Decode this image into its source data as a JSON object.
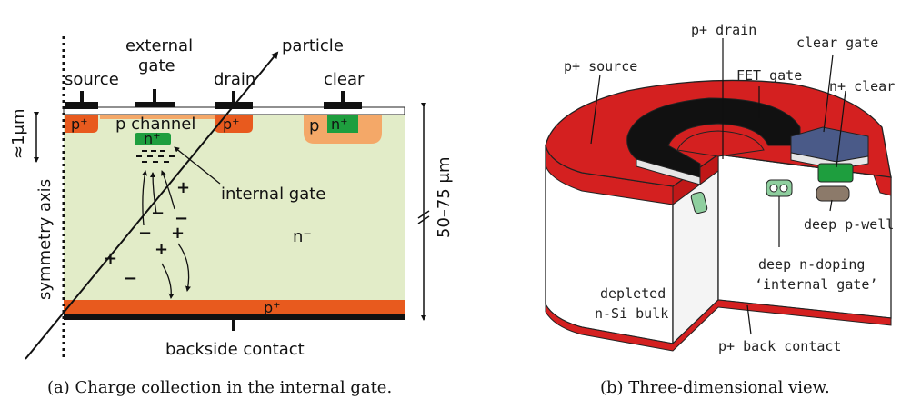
{
  "panel_a": {
    "labels": {
      "source": "source",
      "external_gate_line1": "external",
      "external_gate_line2": "gate",
      "drain": "drain",
      "particle": "particle",
      "clear": "clear",
      "p_plus_source": "p⁺",
      "p_channel": "p channel",
      "p_plus_drain": "p⁺",
      "p_clear": "p",
      "n_plus_clear": "n⁺",
      "n_plus_gate": "n⁺",
      "internal_gate": "internal gate",
      "n_minus": "n⁻",
      "p_plus_back": "p⁺",
      "backside_contact": "backside contact",
      "thickness_top": "≈1μm",
      "thickness_bulk": "50–75 μm",
      "symmetry_axis": "symmetry axis"
    },
    "caption": "(a) Charge collection in the internal gate."
  },
  "panel_b": {
    "labels": {
      "p_plus_drain": "p+ drain",
      "clear_gate": "clear gate",
      "p_plus_source": "p+ source",
      "fet_gate": "FET gate",
      "n_plus_clear": "n+ clear",
      "deep_p_well": "deep p-well",
      "deep_n_doping": "deep n-doping",
      "internal_gate": "‘internal gate’",
      "depleted_line1": "depleted",
      "depleted_line2": "n-Si bulk",
      "back_contact": "p+ back contact"
    },
    "caption": "(b) Three-dimensional view."
  },
  "colors": {
    "bulk": "#e2ecc8",
    "p_plus": "#e85a1e",
    "p_light": "#f4a868",
    "n_plus": "#1e9e3e",
    "metal": "#111111",
    "red_3d": "#d42020",
    "gate_blue": "#4a5a88",
    "well_brown": "#8c7a6a"
  }
}
